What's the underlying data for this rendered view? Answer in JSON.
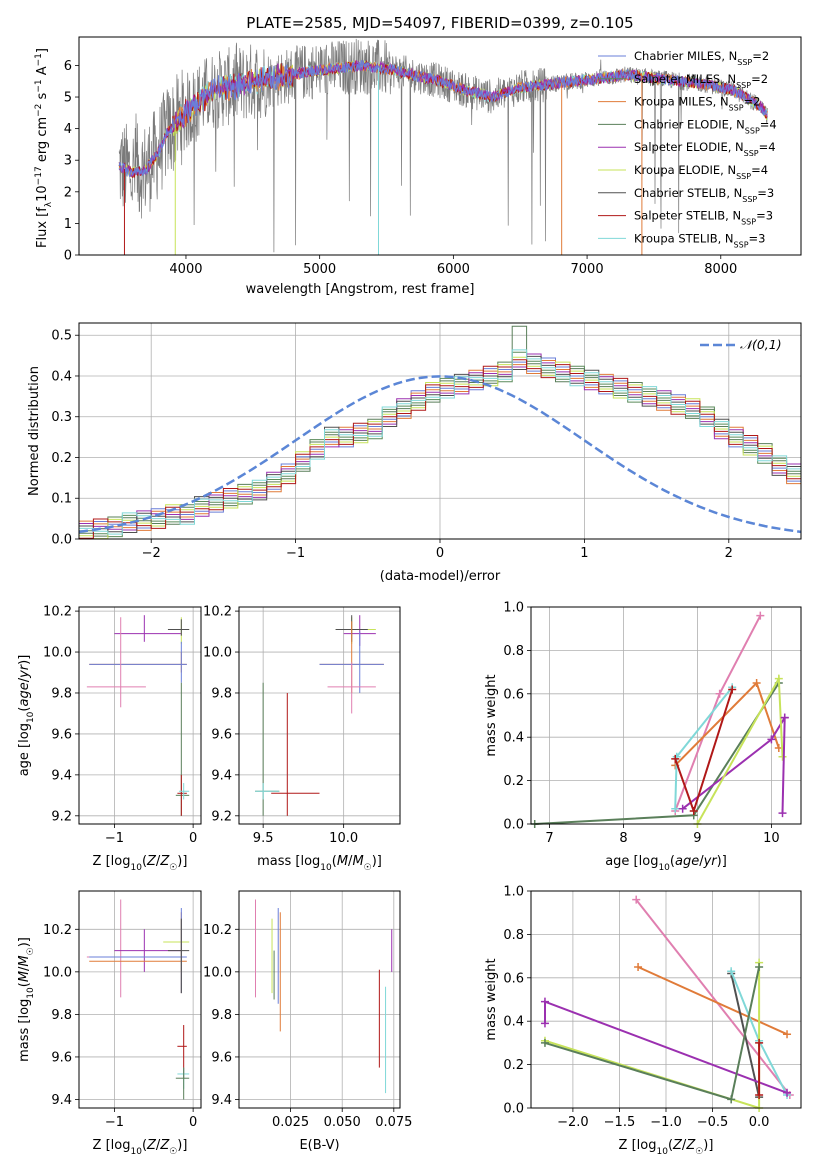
{
  "title": "PLATE=2585, MJD=54097, FIBERID=0399, z=0.105",
  "colors": {
    "Chabrier MILES": "#6a7fd8",
    "Salpeter MILES": "#5a8a5a",
    "Kroupa MILES": "#e07b39",
    "Chabrier ELODIE": "#5a7f5a",
    "Salpeter ELODIE": "#9b30b0",
    "Kroupa ELODIE": "#c7e35a",
    "Chabrier STELIB": "#505050",
    "Salpeter STELIB": "#b01818",
    "Kroupa STELIB": "#80d8d8",
    "pink": "#e07fb0",
    "grid": "#b0b0b0",
    "gaussian": "#5b86d6"
  },
  "chart_data": [
    {
      "id": "spectrum",
      "type": "line",
      "xlabel": "wavelength [Angstrom, rest frame]",
      "ylabel": "Flux [f_λ 10^-17 erg cm^-2 s^-1 A^-1]",
      "xlim": [
        3200,
        8600
      ],
      "ylim": [
        0,
        6.9
      ],
      "xticks": [
        4000,
        5000,
        6000,
        7000,
        8000
      ],
      "yticks": [
        0,
        1,
        2,
        3,
        4,
        5,
        6
      ],
      "grid": false,
      "legend_position": "right",
      "legend": [
        {
          "name": "Chabrier MILES",
          "nssp": "2"
        },
        {
          "name": "Salpeter MILES",
          "nssp": "2"
        },
        {
          "name": "Kroupa MILES",
          "nssp": "2"
        },
        {
          "name": "Chabrier ELODIE",
          "nssp": "4"
        },
        {
          "name": "Salpeter ELODIE",
          "nssp": "4"
        },
        {
          "name": "Kroupa ELODIE",
          "nssp": "4"
        },
        {
          "name": "Chabrier STELIB",
          "nssp": "3"
        },
        {
          "name": "Salpeter STELIB",
          "nssp": "3"
        },
        {
          "name": "Kroupa STELIB",
          "nssp": "3"
        }
      ],
      "model_continuum": {
        "x": [
          3500,
          3600,
          3700,
          3800,
          3850,
          3950,
          4100,
          4200,
          4300,
          4500,
          4700,
          4900,
          5100,
          5300,
          5500,
          5700,
          5900,
          6100,
          6300,
          6500,
          6700,
          6900,
          7100,
          7300,
          7500,
          7700,
          7900,
          8100,
          8300,
          8350
        ],
        "y": [
          2.8,
          2.6,
          2.7,
          3.3,
          3.8,
          4.3,
          4.9,
          5.2,
          5.3,
          5.5,
          5.6,
          5.8,
          5.9,
          6.0,
          5.9,
          5.7,
          5.5,
          5.2,
          5.0,
          5.3,
          5.4,
          5.5,
          5.6,
          5.7,
          5.6,
          5.5,
          5.4,
          5.2,
          4.7,
          4.4
        ]
      }
    },
    {
      "id": "residuals",
      "type": "bar",
      "xlabel": "(data-model)/error",
      "ylabel": "Normed distribution",
      "xlim": [
        -2.5,
        2.5
      ],
      "ylim": [
        0,
        0.53
      ],
      "xticks": [
        -2,
        -1,
        0,
        1,
        2
      ],
      "yticks": [
        0.0,
        0.1,
        0.2,
        0.3,
        0.4,
        0.5
      ],
      "grid": true,
      "legend_position": "top-right",
      "legend": [
        {
          "name": "𝒩(0,1)"
        }
      ],
      "bin_width": 0.1,
      "bin_start": -2.5,
      "histogram": [
        0.02,
        0.025,
        0.03,
        0.04,
        0.045,
        0.05,
        0.06,
        0.06,
        0.08,
        0.09,
        0.1,
        0.11,
        0.12,
        0.14,
        0.16,
        0.19,
        0.22,
        0.25,
        0.25,
        0.26,
        0.27,
        0.3,
        0.32,
        0.34,
        0.36,
        0.37,
        0.38,
        0.39,
        0.4,
        0.41,
        0.44,
        0.43,
        0.42,
        0.41,
        0.4,
        0.39,
        0.38,
        0.37,
        0.36,
        0.35,
        0.34,
        0.33,
        0.32,
        0.3,
        0.27,
        0.25,
        0.23,
        0.21,
        0.18,
        0.16,
        0.14,
        0.12,
        0.1,
        0.09,
        0.08,
        0.07,
        0.06,
        0.05,
        0.04,
        0.03,
        0.02,
        0.02
      ]
    },
    {
      "id": "z-age",
      "type": "scatter",
      "xlabel": "Z [log10(Z/Z☉)]",
      "ylabel": "age [log10(age/yr)]",
      "xlim": [
        -1.45,
        0.1
      ],
      "ylim": [
        9.16,
        10.22
      ],
      "xticks": [
        -1,
        0
      ],
      "yticks": [
        9.2,
        9.4,
        9.6,
        9.8,
        10.0,
        10.2
      ],
      "grid": true,
      "points": [
        {
          "c": "Salpeter ELODIE",
          "x": -0.62,
          "y": 10.09,
          "xe": [
            -1.0,
            -0.15
          ],
          "ye": [
            10.05,
            10.18
          ]
        },
        {
          "c": "Kroupa ELODIE",
          "x": -0.15,
          "y": 10.11,
          "xe": [
            -0.3,
            -0.05
          ],
          "ye": [
            10.04,
            10.17
          ]
        },
        {
          "c": "Chabrier STELIB",
          "x": -0.15,
          "y": 10.11,
          "xe": [
            -0.32,
            -0.05
          ],
          "ye": [
            10.08,
            10.16
          ]
        },
        {
          "c": "Kroupa MILES",
          "x": -0.15,
          "y": 9.94,
          "xe": [
            -1.32,
            -0.08
          ],
          "ye": [
            9.9,
            10.0
          ]
        },
        {
          "c": "Chabrier MILES",
          "x": -0.15,
          "y": 9.94,
          "xe": [
            -1.32,
            -0.08
          ],
          "ye": [
            9.85,
            10.05
          ]
        },
        {
          "c": "pink",
          "x": -0.92,
          "y": 9.83,
          "xe": [
            -1.35,
            -0.6
          ],
          "ye": [
            9.73,
            10.17
          ]
        },
        {
          "c": "Chabrier ELODIE",
          "x": -0.15,
          "y": 9.3,
          "xe": [
            -0.22,
            -0.05
          ],
          "ye": [
            9.2,
            9.85
          ]
        },
        {
          "c": "Salpeter STELIB",
          "x": -0.15,
          "y": 9.31,
          "xe": [
            -0.2,
            -0.08
          ],
          "ye": [
            9.2,
            9.4
          ]
        },
        {
          "c": "Kroupa STELIB",
          "x": -0.12,
          "y": 9.32,
          "xe": [
            -0.18,
            -0.05
          ],
          "ye": [
            9.28,
            9.36
          ]
        }
      ]
    },
    {
      "id": "mass-age",
      "type": "scatter",
      "xlabel": "mass [log10(M/M☉)]",
      "ylabel": "",
      "xlim": [
        9.35,
        10.35
      ],
      "ylim": [
        9.16,
        10.22
      ],
      "xticks": [
        9.5,
        10.0
      ],
      "yticks": [
        9.2,
        9.4,
        9.6,
        9.8,
        10.0,
        10.2
      ],
      "grid": true,
      "points": [
        {
          "c": "Kroupa ELODIE",
          "x": 10.05,
          "y": 10.11,
          "xe": [
            9.95,
            10.2
          ],
          "ye": [
            10.04,
            10.17
          ]
        },
        {
          "c": "Salpeter ELODIE",
          "x": 10.1,
          "y": 10.09,
          "xe": [
            10.0,
            10.2
          ],
          "ye": [
            10.03,
            10.18
          ]
        },
        {
          "c": "Chabrier STELIB",
          "x": 10.05,
          "y": 10.11,
          "xe": [
            9.95,
            10.15
          ],
          "ye": [
            10.05,
            10.18
          ]
        },
        {
          "c": "Kroupa MILES",
          "x": 10.05,
          "y": 9.94,
          "xe": [
            9.85,
            10.25
          ],
          "ye": [
            9.8,
            10.15
          ]
        },
        {
          "c": "Chabrier MILES",
          "x": 10.1,
          "y": 9.94,
          "xe": [
            9.85,
            10.25
          ],
          "ye": [
            9.8,
            10.1
          ]
        },
        {
          "c": "pink",
          "x": 10.05,
          "y": 9.83,
          "xe": [
            9.9,
            10.2
          ],
          "ye": [
            9.7,
            9.95
          ]
        },
        {
          "c": "Chabrier ELODIE",
          "x": 9.5,
          "y": 9.32,
          "xe": [
            9.45,
            9.6
          ],
          "ye": [
            9.2,
            9.85
          ]
        },
        {
          "c": "Salpeter STELIB",
          "x": 9.65,
          "y": 9.31,
          "xe": [
            9.55,
            9.85
          ],
          "ye": [
            9.2,
            9.8
          ]
        },
        {
          "c": "Kroupa STELIB",
          "x": 9.5,
          "y": 9.32,
          "xe": [
            9.45,
            9.6
          ],
          "ye": [
            9.28,
            9.36
          ]
        }
      ]
    },
    {
      "id": "age-weight",
      "type": "line",
      "xlabel": "age [log10(age/yr)]",
      "ylabel": "mass weight",
      "xlim": [
        6.75,
        10.4
      ],
      "ylim": [
        0,
        1
      ],
      "xticks": [
        7,
        8,
        9,
        10
      ],
      "yticks": [
        0.0,
        0.2,
        0.4,
        0.6,
        0.8,
        1.0
      ],
      "grid": true,
      "series": [
        {
          "c": "pink",
          "x": [
            8.7,
            9.3,
            9.85
          ],
          "y": [
            0.06,
            0.6,
            0.96
          ]
        },
        {
          "c": "Chabrier ELODIE",
          "x": [
            6.8,
            8.95,
            10.1
          ],
          "y": [
            0.0,
            0.04,
            0.65
          ]
        },
        {
          "c": "Kroupa MILES",
          "x": [
            8.7,
            9.8,
            10.1
          ],
          "y": [
            0.27,
            0.65,
            0.35
          ]
        },
        {
          "c": "Kroupa STELIB",
          "x": [
            8.7,
            8.72,
            9.47
          ],
          "y": [
            0.07,
            0.31,
            0.63
          ]
        },
        {
          "c": "Salpeter ELODIE",
          "x": [
            8.8,
            10.0,
            10.18
          ],
          "y": [
            0.07,
            0.39,
            0.49
          ]
        },
        {
          "c": "Salpeter STELIB",
          "x": [
            8.7,
            8.95,
            9.47
          ],
          "y": [
            0.3,
            0.06,
            0.62
          ]
        },
        {
          "c": "Kroupa ELODIE",
          "x": [
            9.0,
            10.1,
            10.15
          ],
          "y": [
            0.0,
            0.67,
            0.31
          ]
        },
        {
          "c": "Salpeter ELODIE",
          "x": [
            10.15,
            10.18
          ],
          "y": [
            0.05,
            0.49
          ]
        }
      ]
    },
    {
      "id": "z-mass",
      "type": "scatter",
      "xlabel": "Z [log10(Z/Z☉)]",
      "ylabel": "mass [log10(M/M☉)]",
      "xlim": [
        -1.45,
        0.1
      ],
      "ylim": [
        9.36,
        10.38
      ],
      "xticks": [
        -1,
        0
      ],
      "yticks": [
        9.4,
        9.6,
        9.8,
        10.0,
        10.2
      ],
      "grid": true,
      "points": [
        {
          "c": "pink",
          "x": -0.92,
          "y": 10.07,
          "xe": [
            -1.35,
            -0.6
          ],
          "ye": [
            9.88,
            10.34
          ]
        },
        {
          "c": "Salpeter ELODIE",
          "x": -0.62,
          "y": 10.1,
          "xe": [
            -1.0,
            -0.15
          ],
          "ye": [
            10.0,
            10.2
          ]
        },
        {
          "c": "Kroupa ELODIE",
          "x": -0.15,
          "y": 10.14,
          "xe": [
            -0.38,
            -0.05
          ],
          "ye": [
            10.0,
            10.25
          ]
        },
        {
          "c": "Kroupa MILES",
          "x": -0.15,
          "y": 10.05,
          "xe": [
            -1.32,
            -0.08
          ],
          "ye": [
            9.9,
            10.28
          ]
        },
        {
          "c": "Chabrier MILES",
          "x": -0.15,
          "y": 10.07,
          "xe": [
            -1.32,
            -0.08
          ],
          "ye": [
            9.9,
            10.3
          ]
        },
        {
          "c": "Chabrier STELIB",
          "x": -0.15,
          "y": 10.1,
          "xe": [
            -0.32,
            -0.05
          ],
          "ye": [
            9.9,
            10.25
          ]
        },
        {
          "c": "Salpeter STELIB",
          "x": -0.12,
          "y": 9.65,
          "xe": [
            -0.2,
            -0.08
          ],
          "ye": [
            9.5,
            9.75
          ]
        },
        {
          "c": "Kroupa STELIB",
          "x": -0.12,
          "y": 9.52,
          "xe": [
            -0.2,
            -0.05
          ],
          "ye": [
            9.45,
            9.55
          ]
        },
        {
          "c": "Chabrier ELODIE",
          "x": -0.12,
          "y": 9.5,
          "xe": [
            -0.22,
            -0.05
          ],
          "ye": [
            9.4,
            9.55
          ]
        }
      ]
    },
    {
      "id": "ebv-mass",
      "type": "scatter",
      "xlabel": "E(B-V)",
      "ylabel": "",
      "xlim": [
        0.0,
        0.078
      ],
      "ylim": [
        9.36,
        10.38
      ],
      "xticks": [
        0.025,
        0.05,
        0.075
      ],
      "yticks": [
        9.4,
        9.6,
        9.8,
        10.0,
        10.2
      ],
      "grid": true,
      "points": [
        {
          "c": "pink",
          "x": 0.008,
          "y": 10.07,
          "ye": [
            9.88,
            10.34
          ]
        },
        {
          "c": "Chabrier MILES",
          "x": 0.019,
          "y": 10.07,
          "ye": [
            9.85,
            10.3
          ]
        },
        {
          "c": "Kroupa ELODIE",
          "x": 0.016,
          "y": 10.14,
          "ye": [
            9.9,
            10.25
          ]
        },
        {
          "c": "Chabrier ELODIE",
          "x": 0.017,
          "y": 10.05,
          "ye": [
            9.87,
            10.1
          ]
        },
        {
          "c": "Kroupa MILES",
          "x": 0.02,
          "y": 10.05,
          "ye": [
            9.72,
            10.28
          ]
        },
        {
          "c": "Salpeter STELIB",
          "x": 0.068,
          "y": 9.65,
          "ye": [
            9.55,
            10.01
          ]
        },
        {
          "c": "Kroupa STELIB",
          "x": 0.071,
          "y": 9.52,
          "ye": [
            9.43,
            9.93
          ]
        },
        {
          "c": "Salpeter ELODIE",
          "x": 0.074,
          "y": 10.1,
          "ye": [
            10.0,
            10.2
          ]
        }
      ]
    },
    {
      "id": "z-weight",
      "type": "line",
      "xlabel": "Z [log10(Z/Z☉)]",
      "ylabel": "mass weight",
      "xlim": [
        -2.45,
        0.45
      ],
      "ylim": [
        0,
        1
      ],
      "xticks": [
        -2.0,
        -1.5,
        -1.0,
        -0.5,
        0.0
      ],
      "yticks": [
        0.0,
        0.2,
        0.4,
        0.6,
        0.8,
        1.0
      ],
      "grid": true,
      "series": [
        {
          "c": "pink",
          "x": [
            -1.32,
            0.33
          ],
          "y": [
            0.96,
            0.06
          ]
        },
        {
          "c": "Kroupa MILES",
          "x": [
            -1.3,
            0.3
          ],
          "y": [
            0.65,
            0.34
          ]
        },
        {
          "c": "Chabrier STELIB",
          "x": [
            -0.3,
            0.0
          ],
          "y": [
            0.62,
            0.05
          ]
        },
        {
          "c": "Kroupa STELIB",
          "x": [
            -0.3,
            0.0,
            0.3
          ],
          "y": [
            0.63,
            0.31,
            0.06
          ]
        },
        {
          "c": "Salpeter ELODIE",
          "x": [
            -2.3,
            -2.3,
            0.3
          ],
          "y": [
            0.39,
            0.49,
            0.07
          ]
        },
        {
          "c": "Kroupa ELODIE",
          "x": [
            -2.3,
            0.0,
            0.0
          ],
          "y": [
            0.31,
            0.0,
            0.67
          ]
        },
        {
          "c": "Chabrier ELODIE",
          "x": [
            -2.3,
            -0.3,
            0.0
          ],
          "y": [
            0.3,
            0.04,
            0.65
          ]
        },
        {
          "c": "Salpeter STELIB",
          "x": [
            0.0,
            0.0
          ],
          "y": [
            0.06,
            0.3
          ]
        }
      ]
    }
  ]
}
